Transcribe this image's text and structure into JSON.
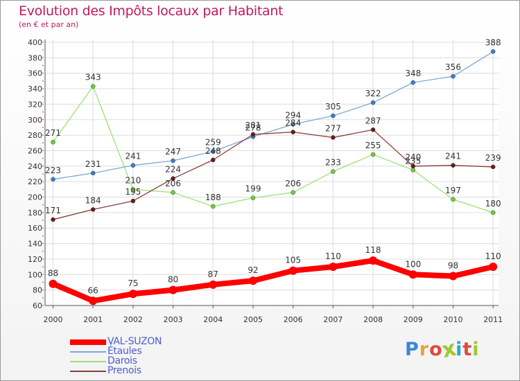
{
  "header": {
    "title": "Evolution des Impôts locaux par Habitant",
    "subtitle": "(en € et par an)"
  },
  "brand": {
    "logo_text": "Proxiti",
    "letter_colors": [
      "#3a86d8",
      "#e8a23a",
      "#e0493a",
      "#a0c832",
      "#2aa4d8",
      "#e0493a",
      "#a0c832"
    ]
  },
  "chart_data": {
    "type": "line",
    "x": [
      "2000",
      "2001",
      "2002",
      "2003",
      "2004",
      "2005",
      "2006",
      "2007",
      "2008",
      "2009",
      "2010",
      "2011"
    ],
    "ylim": [
      60,
      400
    ],
    "yticks": [
      60,
      80,
      100,
      120,
      140,
      160,
      180,
      200,
      220,
      240,
      260,
      280,
      300,
      320,
      340,
      360,
      380,
      400
    ],
    "grid": true,
    "legend_position": "bottom-left",
    "series": [
      {
        "name": "VAL-SUZON",
        "color": "#ff0000",
        "marker_color": "#ff0000",
        "width": 8,
        "values": [
          88,
          66,
          75,
          80,
          87,
          92,
          105,
          110,
          118,
          100,
          98,
          110
        ]
      },
      {
        "name": "Étaules",
        "color": "#7aa8d8",
        "marker_color": "#3a7fd0",
        "width": 1.3,
        "values": [
          223,
          231,
          241,
          247,
          259,
          278,
          294,
          305,
          322,
          348,
          356,
          388
        ]
      },
      {
        "name": "Darois",
        "color": "#9ee07a",
        "marker_color": "#6cd03a",
        "width": 1.3,
        "values": [
          271,
          343,
          210,
          206,
          188,
          199,
          206,
          233,
          255,
          235,
          197,
          180
        ]
      },
      {
        "name": "Prenois",
        "color": "#8b3a3a",
        "marker_color": "#6a1a1a",
        "width": 1.3,
        "values": [
          171,
          184,
          195,
          224,
          248,
          281,
          284,
          277,
          287,
          240,
          241,
          239
        ]
      }
    ]
  }
}
